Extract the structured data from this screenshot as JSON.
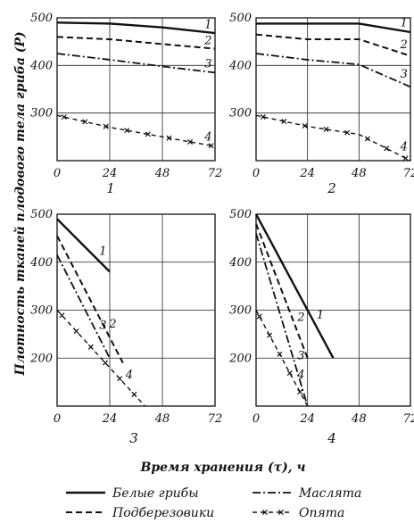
{
  "chart_data": [
    {
      "type": "line",
      "panel_label": "1",
      "x_ticks": [
        0,
        24,
        48,
        72
      ],
      "y_ticks": [
        300,
        400,
        500
      ],
      "xlim": [
        0,
        72
      ],
      "ylim": [
        200,
        500
      ],
      "grid": true,
      "series": [
        {
          "key": "1",
          "label": "1",
          "style": "solid",
          "points": [
            [
              0,
              490
            ],
            [
              24,
              488
            ],
            [
              48,
              480
            ],
            [
              72,
              468
            ]
          ]
        },
        {
          "key": "2",
          "label": "2",
          "style": "dashed",
          "points": [
            [
              0,
              460
            ],
            [
              24,
              455
            ],
            [
              48,
              445
            ],
            [
              72,
              435
            ]
          ]
        },
        {
          "key": "3",
          "label": "3",
          "style": "dashdot",
          "points": [
            [
              0,
              425
            ],
            [
              24,
              412
            ],
            [
              48,
              398
            ],
            [
              72,
              385
            ]
          ]
        },
        {
          "key": "4",
          "label": "4",
          "style": "cross",
          "points": [
            [
              0,
              295
            ],
            [
              24,
              270
            ],
            [
              48,
              250
            ],
            [
              72,
              230
            ]
          ]
        }
      ]
    },
    {
      "type": "line",
      "panel_label": "2",
      "x_ticks": [
        0,
        24,
        48,
        72
      ],
      "y_ticks": [
        300,
        400,
        500
      ],
      "xlim": [
        0,
        72
      ],
      "ylim": [
        200,
        500
      ],
      "grid": true,
      "series": [
        {
          "key": "1",
          "label": "1",
          "style": "solid",
          "points": [
            [
              0,
              488
            ],
            [
              48,
              488
            ],
            [
              72,
              470
            ]
          ]
        },
        {
          "key": "2",
          "label": "2",
          "style": "dashed",
          "points": [
            [
              0,
              465
            ],
            [
              24,
              455
            ],
            [
              48,
              455
            ],
            [
              72,
              420
            ]
          ]
        },
        {
          "key": "3",
          "label": "3",
          "style": "dashdot",
          "points": [
            [
              0,
              425
            ],
            [
              24,
              412
            ],
            [
              48,
              402
            ],
            [
              72,
              355
            ]
          ]
        },
        {
          "key": "4",
          "label": "4",
          "style": "cross",
          "points": [
            [
              0,
              295
            ],
            [
              24,
              272
            ],
            [
              48,
              255
            ],
            [
              72,
              200
            ]
          ]
        }
      ]
    },
    {
      "type": "line",
      "panel_label": "3",
      "x_ticks": [
        0,
        24,
        48,
        72
      ],
      "y_ticks": [
        200,
        300,
        400,
        500
      ],
      "xlim": [
        0,
        72
      ],
      "ylim": [
        100,
        500
      ],
      "grid": true,
      "series": [
        {
          "key": "1",
          "label": "1",
          "style": "solid",
          "points": [
            [
              0,
              490
            ],
            [
              24,
              380
            ]
          ]
        },
        {
          "key": "2",
          "label": "2",
          "style": "dashed",
          "points": [
            [
              0,
              455
            ],
            [
              30,
              190
            ]
          ]
        },
        {
          "key": "3",
          "label": "3",
          "style": "dashdot",
          "points": [
            [
              0,
              415
            ],
            [
              24,
              200
            ]
          ]
        },
        {
          "key": "4",
          "label": "4",
          "style": "cross",
          "points": [
            [
              0,
              300
            ],
            [
              40,
              100
            ]
          ]
        }
      ]
    },
    {
      "type": "line",
      "panel_label": "4",
      "x_ticks": [
        0,
        24,
        48,
        72
      ],
      "y_ticks": [
        200,
        300,
        400,
        500
      ],
      "xlim": [
        0,
        72
      ],
      "ylim": [
        100,
        500
      ],
      "grid": true,
      "series": [
        {
          "key": "1",
          "label": "1",
          "style": "solid",
          "points": [
            [
              0,
              500
            ],
            [
              36,
              200
            ]
          ]
        },
        {
          "key": "2",
          "label": "2",
          "style": "dashed",
          "points": [
            [
              0,
              480
            ],
            [
              24,
              200
            ]
          ]
        },
        {
          "key": "3",
          "label": "3",
          "style": "dashdot",
          "points": [
            [
              0,
              460
            ],
            [
              24,
              100
            ]
          ]
        },
        {
          "key": "4",
          "label": "4",
          "style": "cross",
          "points": [
            [
              0,
              300
            ],
            [
              24,
              100
            ]
          ]
        }
      ]
    }
  ],
  "ylabel": "Плотность тканей плодового тела гриба (P)",
  "xlabel": "Время хранения (τ), ч",
  "legend": [
    {
      "key": "1",
      "style": "solid",
      "label": "Белые грибы"
    },
    {
      "key": "2",
      "style": "dashed",
      "label": "Подберезовики"
    },
    {
      "key": "3",
      "style": "dashdot",
      "label": "Маслята"
    },
    {
      "key": "4",
      "style": "cross",
      "label": "Опята"
    }
  ]
}
